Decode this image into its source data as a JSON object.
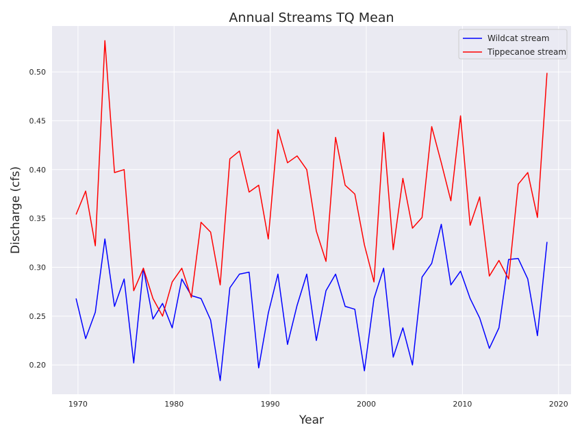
{
  "chart_data": {
    "type": "line",
    "title": "Annual Streams TQ Mean",
    "xlabel": "Year",
    "ylabel": "Discharge (cfs)",
    "xlim": [
      1967.3,
      2021.3
    ],
    "ylim": [
      0.17,
      0.547
    ],
    "xticks": [
      1970,
      1980,
      1990,
      2000,
      2010,
      2020
    ],
    "yticks": [
      0.2,
      0.25,
      0.3,
      0.35,
      0.4,
      0.45,
      0.5
    ],
    "ytick_labels": [
      "0.20",
      "0.25",
      "0.30",
      "0.35",
      "0.40",
      "0.45",
      "0.50"
    ],
    "grid": true,
    "legend_position": "top-right",
    "background_color": "#eaeaf2",
    "x": [
      1969.8,
      1970.8,
      1971.8,
      1972.8,
      1973.8,
      1974.8,
      1975.8,
      1976.8,
      1977.8,
      1978.8,
      1979.8,
      1980.8,
      1981.8,
      1982.8,
      1983.8,
      1984.8,
      1985.8,
      1986.8,
      1987.8,
      1988.8,
      1989.8,
      1990.8,
      1991.8,
      1992.8,
      1993.8,
      1994.8,
      1995.8,
      1996.8,
      1997.8,
      1998.8,
      1999.8,
      2000.8,
      2001.8,
      2002.8,
      2003.8,
      2004.8,
      2005.8,
      2006.8,
      2007.8,
      2008.8,
      2009.8,
      2010.8,
      2011.8,
      2012.8,
      2013.8,
      2014.8,
      2015.8,
      2016.8,
      2017.8,
      2018.8
    ],
    "series": [
      {
        "name": "Wildcat stream",
        "color": "#0000ff",
        "values": [
          0.268,
          0.227,
          0.254,
          0.329,
          0.26,
          0.288,
          0.202,
          0.299,
          0.247,
          0.263,
          0.238,
          0.288,
          0.271,
          0.268,
          0.246,
          0.184,
          0.279,
          0.293,
          0.295,
          0.197,
          0.253,
          0.293,
          0.221,
          0.261,
          0.293,
          0.225,
          0.276,
          0.293,
          0.26,
          0.257,
          0.194,
          0.268,
          0.299,
          0.208,
          0.238,
          0.2,
          0.29,
          0.304,
          0.344,
          0.282,
          0.296,
          0.268,
          0.248,
          0.217,
          0.238,
          0.308,
          0.309,
          0.288,
          0.23,
          0.326
        ]
      },
      {
        "name": "Tippecanoe stream",
        "color": "#ff0000",
        "values": [
          0.354,
          0.378,
          0.322,
          0.532,
          0.397,
          0.4,
          0.276,
          0.299,
          0.268,
          0.25,
          0.285,
          0.299,
          0.269,
          0.346,
          0.336,
          0.282,
          0.411,
          0.419,
          0.377,
          0.384,
          0.329,
          0.441,
          0.407,
          0.414,
          0.4,
          0.337,
          0.306,
          0.433,
          0.384,
          0.375,
          0.323,
          0.285,
          0.438,
          0.318,
          0.391,
          0.34,
          0.351,
          0.444,
          0.407,
          0.368,
          0.455,
          0.343,
          0.372,
          0.291,
          0.307,
          0.288,
          0.385,
          0.397,
          0.351,
          0.499
        ]
      }
    ]
  }
}
